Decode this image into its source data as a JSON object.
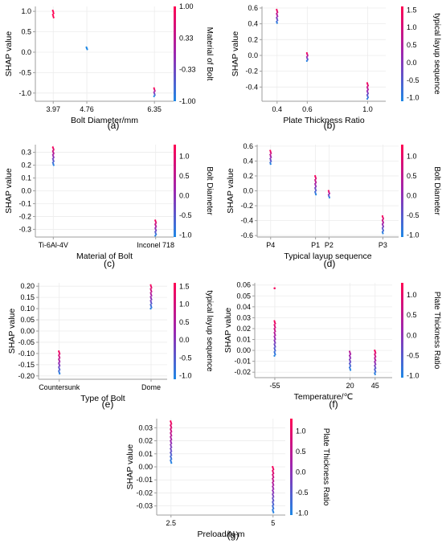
{
  "colors": {
    "low": "#1e88e5",
    "mid": "#9c27b0",
    "high": "#ff0052",
    "gridline": "#ececec",
    "axis": "#9e9e9e",
    "text": "#000000"
  },
  "chart_data": [
    {
      "type": "scatter",
      "panel_label": "(a)",
      "xlabel": "Bolt Diameter/mm",
      "ylabel": "SHAP value",
      "xticks": [
        "3.97",
        "4.76",
        "6.35"
      ],
      "xtick_values": [
        3.97,
        4.76,
        6.35
      ],
      "xlim": [
        3.55,
        6.8
      ],
      "yticks": [
        "1.0",
        "0.5",
        "0.0",
        "-0.5",
        "-1.0"
      ],
      "ytick_values": [
        1.0,
        0.5,
        0.0,
        -0.5,
        -1.0
      ],
      "ylim": [
        -1.2,
        1.12
      ],
      "colorbar": {
        "label": "Material of Bolt",
        "ticks": [
          "1.00",
          "0.33",
          "-0.33",
          "-1.00"
        ],
        "tick_values": [
          1.0,
          0.33,
          -0.33,
          -1.0
        ],
        "range": [
          -1.0,
          1.0
        ]
      },
      "points": [
        {
          "x": 3.97,
          "y_min": 0.85,
          "y_max": 1.02,
          "color_min": 1.0,
          "color_max": 1.0
        },
        {
          "x": 4.76,
          "y_min": 0.07,
          "y_max": 0.12,
          "color_min": -1.0,
          "color_max": -1.0
        },
        {
          "x": 6.35,
          "y_min": -1.08,
          "y_max": -0.88,
          "color_min": -1.0,
          "color_max": 1.0
        }
      ]
    },
    {
      "type": "scatter",
      "panel_label": "(b)",
      "xlabel": "Plate Thickness Ratio",
      "ylabel": "SHAP value",
      "xticks": [
        "0.4",
        "0.6",
        "1.0"
      ],
      "xtick_values": [
        0.4,
        0.6,
        1.0
      ],
      "xlim": [
        0.3,
        1.12
      ],
      "yticks": [
        "0.6",
        "0.4",
        "0.2",
        "0.0",
        "-0.2",
        "-0.4"
      ],
      "ytick_values": [
        0.6,
        0.4,
        0.2,
        0.0,
        -0.2,
        -0.4
      ],
      "ylim": [
        -0.58,
        0.62
      ],
      "colorbar": {
        "label": "typical layup sequence",
        "ticks": [
          "1.5",
          "1.0",
          "0.5",
          "0.0",
          "-0.5",
          "-1.0"
        ],
        "tick_values": [
          1.5,
          1.0,
          0.5,
          0.0,
          -0.5,
          -1.0
        ],
        "range": [
          -1.1,
          1.6
        ]
      },
      "points": [
        {
          "x": 0.4,
          "y_min": 0.41,
          "y_max": 0.58,
          "color_min": -1.0,
          "color_max": 1.5
        },
        {
          "x": 0.6,
          "y_min": -0.07,
          "y_max": 0.03,
          "color_min": -1.0,
          "color_max": 1.5
        },
        {
          "x": 1.0,
          "y_min": -0.55,
          "y_max": -0.35,
          "color_min": -1.0,
          "color_max": 1.5
        }
      ]
    },
    {
      "type": "scatter",
      "panel_label": "(c)",
      "xlabel": "Material of Bolt",
      "ylabel": "SHAP value",
      "xticks": [
        "Ti-6Al-4V",
        "Inconel 718"
      ],
      "xtick_values": [
        -1.0,
        1.0
      ],
      "xlim": [
        -1.35,
        1.35
      ],
      "yticks": [
        "0.3",
        "0.2",
        "0.1",
        "0.0",
        "-0.1",
        "-0.2",
        "-0.3"
      ],
      "ytick_values": [
        0.3,
        0.2,
        0.1,
        0.0,
        -0.1,
        -0.2,
        -0.3
      ],
      "ylim": [
        -0.36,
        0.36
      ],
      "colorbar": {
        "label": "Bolt Diameter",
        "ticks": [
          "1.0",
          "0.5",
          "0.0",
          "-0.5",
          "-1.0"
        ],
        "tick_values": [
          1.0,
          0.5,
          0.0,
          -0.5,
          -1.0
        ],
        "range": [
          -1.05,
          1.3
        ]
      },
      "points": [
        {
          "x": -1.0,
          "y_min": 0.2,
          "y_max": 0.34,
          "color_min": -1.0,
          "color_max": 1.2
        },
        {
          "x": 1.0,
          "y_min": -0.35,
          "y_max": -0.23,
          "color_min": -1.0,
          "color_max": 1.2
        }
      ]
    },
    {
      "type": "scatter",
      "panel_label": "(d)",
      "xlabel": "Typical layup sequence",
      "ylabel": "SHAP value",
      "xticks": [
        "P4",
        "P1",
        "P2",
        "P3"
      ],
      "xtick_values": [
        -1.0,
        0.0,
        0.3,
        1.5
      ],
      "xlim": [
        -1.3,
        1.85
      ],
      "yticks": [
        "0.6",
        "0.4",
        "0.2",
        "0.0",
        "-0.2",
        "-0.4",
        "-0.6"
      ],
      "ytick_values": [
        0.6,
        0.4,
        0.2,
        0.0,
        -0.2,
        -0.4,
        -0.6
      ],
      "ylim": [
        -0.62,
        0.62
      ],
      "colorbar": {
        "label": "Bolt Diameter",
        "ticks": [
          "1.0",
          "0.5",
          "0.0",
          "-0.5",
          "-1.0"
        ],
        "tick_values": [
          1.0,
          0.5,
          0.0,
          -0.5,
          -1.0
        ],
        "range": [
          -1.05,
          1.3
        ]
      },
      "points": [
        {
          "x": -1.0,
          "y_min": 0.36,
          "y_max": 0.54,
          "color_min": -1.0,
          "color_max": 1.2
        },
        {
          "x": 0.0,
          "y_min": -0.05,
          "y_max": 0.2,
          "color_min": -1.0,
          "color_max": 1.2
        },
        {
          "x": 0.3,
          "y_min": -0.09,
          "y_max": 0.0,
          "color_min": -1.0,
          "color_max": 1.2
        },
        {
          "x": 1.5,
          "y_min": -0.57,
          "y_max": -0.34,
          "color_min": -1.0,
          "color_max": 1.2
        }
      ]
    },
    {
      "type": "scatter",
      "panel_label": "(e)",
      "xlabel": "Type of Bolt",
      "ylabel": "SHAP value",
      "xticks": [
        "Countersunk",
        "Dome"
      ],
      "xtick_values": [
        -1.0,
        1.0
      ],
      "xlim": [
        -1.45,
        1.35
      ],
      "yticks": [
        "0.20",
        "0.15",
        "0.10",
        "0.05",
        "0.00",
        "-0.05",
        "-0.10",
        "-0.15",
        "-0.20"
      ],
      "ytick_values": [
        0.2,
        0.15,
        0.1,
        0.05,
        0.0,
        -0.05,
        -0.1,
        -0.15,
        -0.2
      ],
      "ylim": [
        -0.215,
        0.215
      ],
      "colorbar": {
        "label": "typical layup sequence",
        "ticks": [
          "1.5",
          "1.0",
          "0.5",
          "0.0",
          "-0.5",
          "-1.0"
        ],
        "tick_values": [
          1.5,
          1.0,
          0.5,
          0.0,
          -0.5,
          -1.0
        ],
        "range": [
          -1.1,
          1.6
        ]
      },
      "points": [
        {
          "x": -1.0,
          "y_min": -0.19,
          "y_max": -0.09,
          "color_min": -1.0,
          "color_max": 1.5
        },
        {
          "x": 1.0,
          "y_min": 0.1,
          "y_max": 0.205,
          "color_min": -1.0,
          "color_max": 1.5
        }
      ]
    },
    {
      "type": "scatter",
      "panel_label": "(f)",
      "xlabel": "Temperature/℃",
      "ylabel": "SHAP value",
      "xticks": [
        "-55",
        "20",
        "45"
      ],
      "xtick_values": [
        -55,
        20,
        45
      ],
      "xlim": [
        -75,
        62
      ],
      "yticks": [
        "0.06",
        "0.05",
        "0.04",
        "0.03",
        "0.02",
        "0.01",
        "0.00",
        "-0.01",
        "-0.02"
      ],
      "ytick_values": [
        0.06,
        0.05,
        0.04,
        0.03,
        0.02,
        0.01,
        0.0,
        -0.01,
        -0.02
      ],
      "ylim": [
        -0.025,
        0.062
      ],
      "colorbar": {
        "label": "Plate Thickness Ratio",
        "ticks": [
          "1.0",
          "0.5",
          "0.0",
          "-0.5",
          "-1.0"
        ],
        "tick_values": [
          1.0,
          0.5,
          0.0,
          -0.5,
          -1.0
        ],
        "range": [
          -1.05,
          1.3
        ]
      },
      "points": [
        {
          "x": -55,
          "y_min": -0.005,
          "y_max": 0.027,
          "color_min": -1.0,
          "color_max": 1.2
        },
        {
          "x": -55,
          "y_min": 0.057,
          "y_max": 0.057,
          "color_min": 1.2,
          "color_max": 1.2
        },
        {
          "x": 20,
          "y_min": -0.018,
          "y_max": -0.001,
          "color_min": -1.0,
          "color_max": 0.5
        },
        {
          "x": 45,
          "y_min": -0.022,
          "y_max": 0.0,
          "color_min": -1.0,
          "color_max": 1.2
        }
      ]
    },
    {
      "type": "scatter",
      "panel_label": "(g)",
      "xlabel": "Preload/N·m",
      "ylabel": "SHAP value",
      "xticks": [
        "2.5",
        "5"
      ],
      "xtick_values": [
        2.5,
        5.0
      ],
      "xlim": [
        2.15,
        5.3
      ],
      "yticks": [
        "0.03",
        "0.02",
        "0.01",
        "0.00",
        "-0.01",
        "-0.02",
        "-0.03"
      ],
      "ytick_values": [
        0.03,
        0.02,
        0.01,
        0.0,
        -0.01,
        -0.02,
        -0.03
      ],
      "ylim": [
        -0.037,
        0.037
      ],
      "colorbar": {
        "label": "Plate Thickness Ratio",
        "ticks": [
          "1.0",
          "0.5",
          "0.0",
          "-0.5",
          "-1.0"
        ],
        "tick_values": [
          1.0,
          0.5,
          0.0,
          -0.5,
          -1.0
        ],
        "range": [
          -1.05,
          1.3
        ]
      },
      "points": [
        {
          "x": 2.5,
          "y_min": 0.003,
          "y_max": 0.035,
          "color_min": -1.0,
          "color_max": 1.2
        },
        {
          "x": 5.0,
          "y_min": -0.035,
          "y_max": 0.0,
          "color_min": -1.0,
          "color_max": 1.2
        }
      ]
    }
  ]
}
